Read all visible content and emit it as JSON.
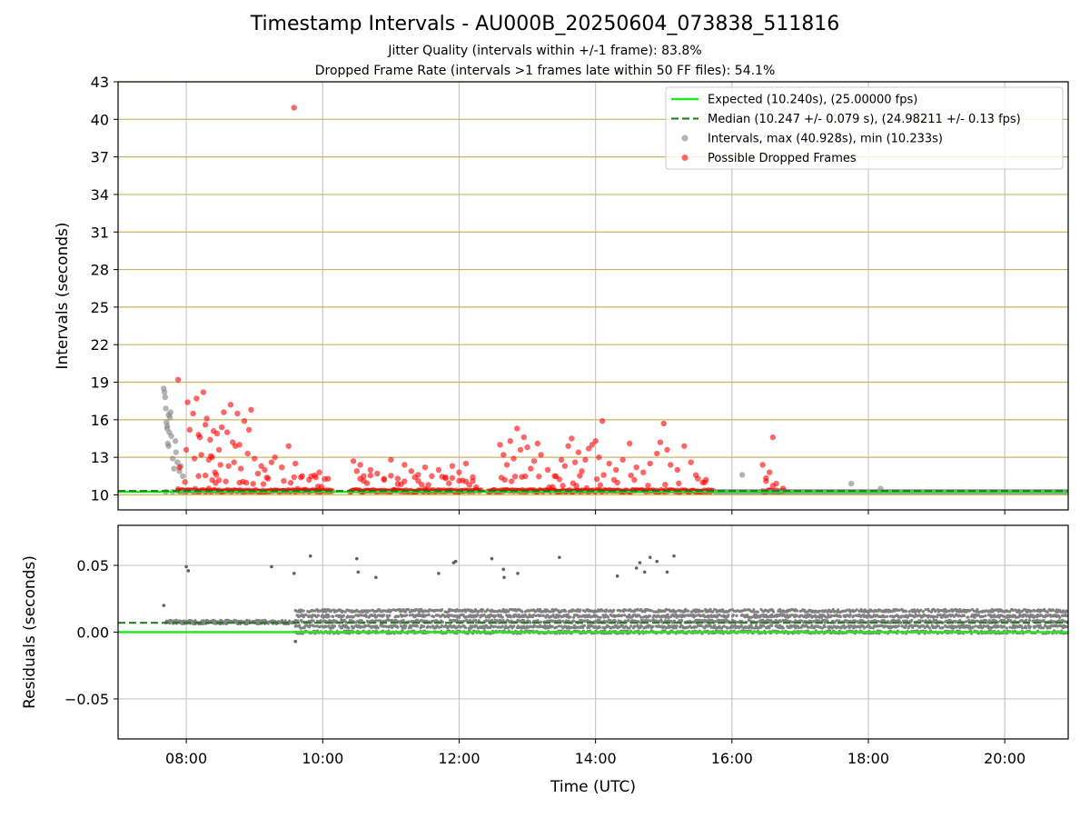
{
  "titles": {
    "main": "Timestamp Intervals - AU000B_20250604_073838_511816",
    "sub1": "Jitter Quality (intervals within +/-1 frame): 83.8%",
    "sub2": "Dropped Frame Rate (intervals >1 frames late within 50 FF files): 54.1%"
  },
  "colors": {
    "expected": "#22e822",
    "median": "#1a7a1a",
    "intervals": "#808080",
    "dropped": "#ff0000",
    "hgrid_top": "#c8b460",
    "vgrid": "#c8c8c8"
  },
  "chart_data": [
    {
      "type": "scatter",
      "ylabel": "Intervals (seconds)",
      "xlabel": "",
      "xlim_hours": [
        7.0,
        20.93
      ],
      "ylim": [
        8.8,
        43
      ],
      "yticks": [
        10,
        13,
        16,
        19,
        22,
        25,
        28,
        31,
        34,
        37,
        40,
        43
      ],
      "ytick_labels": [
        "10",
        "13",
        "16",
        "19",
        "22",
        "25",
        "28",
        "31",
        "34",
        "37",
        "40",
        "43"
      ],
      "grid": "on",
      "legend_position": "top-right",
      "legend": [
        {
          "key": "expected",
          "label": "Expected (10.240s), (25.00000 fps)"
        },
        {
          "key": "median",
          "label": "Median (10.247 +/- 0.079 s), (24.98211 +/- 0.13 fps)"
        },
        {
          "key": "intervals",
          "label": "Intervals, max (40.928s), min (10.233s)"
        },
        {
          "key": "dropped",
          "label": "Possible Dropped Frames"
        }
      ],
      "expected_value": 10.24,
      "median_value": 10.247,
      "series": [
        {
          "name": "Intervals, max (40.928s), min (10.233s)",
          "x": [
            7.67,
            7.68,
            7.69,
            7.7,
            7.71,
            7.72,
            7.73,
            7.74,
            7.75,
            7.76,
            7.77,
            7.78,
            7.8,
            7.82,
            7.84,
            7.85,
            7.87,
            7.9,
            7.92,
            7.95,
            7.72,
            7.74,
            16.15,
            17.75,
            18.18,
            7.7,
            7.8,
            7.95,
            8.1
          ],
          "y": [
            18.5,
            18.2,
            17.8,
            16.9,
            15.8,
            15.3,
            14.1,
            13.9,
            15.0,
            16.2,
            16.6,
            14.7,
            12.9,
            12.1,
            14.3,
            13.4,
            12.6,
            11.9,
            12.3,
            11.5,
            15.5,
            16.4,
            11.6,
            10.9,
            10.5,
            10.24,
            10.25,
            10.24,
            10.26
          ]
        },
        {
          "name": "Possible Dropped Frames",
          "x": [
            9.58,
            7.88,
            8.02,
            8.05,
            8.1,
            8.15,
            8.18,
            8.22,
            8.25,
            8.28,
            8.3,
            8.33,
            8.35,
            8.38,
            8.4,
            8.42,
            8.45,
            8.48,
            8.5,
            8.55,
            8.6,
            8.65,
            8.68,
            8.7,
            8.72,
            8.75,
            8.8,
            8.85,
            8.9,
            8.95,
            9.0,
            9.05,
            9.1,
            9.15,
            9.2,
            9.25,
            9.3,
            9.4,
            9.5,
            9.6,
            9.7,
            9.8,
            9.9,
            9.95,
            7.9,
            8.0,
            8.12,
            8.2,
            8.36,
            8.44,
            8.52,
            8.62,
            8.78,
            8.92,
            10.45,
            10.5,
            10.55,
            10.6,
            10.7,
            10.8,
            10.9,
            11.0,
            11.1,
            11.2,
            11.3,
            11.4,
            11.5,
            11.6,
            11.7,
            11.8,
            11.9,
            12.0,
            12.1,
            12.2,
            12.6,
            12.65,
            12.7,
            12.75,
            12.8,
            12.85,
            12.9,
            12.95,
            13.0,
            13.05,
            13.1,
            13.15,
            13.2,
            13.3,
            13.4,
            13.5,
            13.55,
            13.6,
            13.65,
            13.7,
            13.75,
            13.8,
            13.85,
            13.9,
            13.95,
            14.0,
            14.05,
            14.1,
            14.2,
            14.3,
            14.4,
            14.5,
            14.6,
            14.7,
            14.8,
            14.9,
            14.95,
            15.0,
            15.05,
            15.1,
            15.2,
            15.3,
            15.4,
            15.5,
            15.6,
            16.45,
            16.5,
            16.55,
            16.6,
            16.65
          ],
          "y": [
            40.93,
            19.2,
            17.4,
            15.2,
            16.5,
            17.7,
            14.8,
            13.2,
            18.2,
            15.6,
            16.1,
            12.8,
            14.4,
            13.0,
            15.1,
            11.8,
            14.9,
            13.6,
            12.4,
            16.6,
            15.0,
            17.2,
            14.2,
            12.6,
            13.9,
            16.5,
            12.1,
            15.9,
            13.3,
            16.8,
            12.9,
            11.7,
            12.3,
            12.0,
            11.3,
            12.6,
            13.0,
            12.2,
            13.9,
            12.5,
            11.5,
            11.2,
            11.4,
            11.8,
            12.2,
            13.6,
            12.9,
            14.6,
            13.1,
            11.6,
            15.4,
            12.3,
            14.0,
            15.2,
            12.7,
            11.9,
            12.4,
            11.5,
            12.0,
            11.7,
            11.2,
            12.8,
            11.3,
            12.4,
            11.9,
            11.6,
            12.2,
            11.5,
            12.0,
            11.4,
            12.3,
            11.8,
            12.5,
            11.1,
            14.0,
            13.2,
            12.4,
            14.3,
            12.9,
            15.3,
            13.6,
            14.6,
            13.8,
            12.1,
            12.7,
            14.1,
            13.2,
            12.0,
            11.5,
            12.8,
            12.3,
            13.9,
            14.5,
            12.6,
            13.4,
            11.9,
            12.8,
            13.7,
            14.0,
            14.3,
            13.0,
            15.9,
            12.5,
            12.0,
            12.8,
            14.1,
            12.2,
            11.8,
            12.5,
            13.3,
            14.2,
            15.7,
            13.6,
            12.4,
            12.0,
            13.9,
            12.6,
            11.3,
            11.0,
            12.4,
            11.1,
            11.8,
            14.6,
            10.9
          ]
        }
      ],
      "dropped_dense_segments_hours": [
        [
          7.88,
          10.15
        ],
        [
          10.4,
          12.32
        ],
        [
          12.42,
          15.72
        ],
        [
          16.45,
          16.78
        ]
      ]
    },
    {
      "type": "scatter",
      "ylabel": "Residuals (seconds)",
      "xlabel": "Time (UTC)",
      "xlim_hours": [
        7.0,
        20.93
      ],
      "ylim": [
        -0.08,
        0.08
      ],
      "yticks": [
        -0.05,
        0.0,
        0.05
      ],
      "ytick_labels": [
        "−0.05",
        "0.00",
        "0.05"
      ],
      "xticks_hours": [
        8,
        10,
        12,
        14,
        16,
        18,
        20
      ],
      "xtick_labels": [
        "08:00",
        "10:00",
        "12:00",
        "14:00",
        "16:00",
        "18:00",
        "20:00"
      ],
      "grid": "on",
      "expected_value": 0.0,
      "median_value": 0.007,
      "series": [
        {
          "name": "Residuals",
          "x": [
            7.67,
            8.0,
            8.03,
            9.25,
            9.58,
            9.82,
            10.5,
            10.52,
            10.78,
            11.7,
            11.92,
            11.95,
            12.48,
            12.65,
            12.66,
            12.86,
            13.47,
            14.32,
            14.6,
            14.65,
            14.72,
            14.8,
            14.9,
            15.05,
            15.15,
            9.6
          ],
          "y": [
            0.02,
            0.049,
            0.046,
            0.049,
            0.044,
            0.057,
            0.055,
            0.045,
            0.041,
            0.044,
            0.052,
            0.053,
            0.055,
            0.047,
            0.041,
            0.044,
            0.056,
            0.042,
            0.048,
            0.052,
            0.045,
            0.056,
            0.053,
            0.045,
            0.057,
            -0.007
          ]
        }
      ],
      "dense_bands": [
        {
          "from_hour": 7.7,
          "to_hour": 9.6,
          "values": [
            0.007,
            0.008
          ]
        },
        {
          "from_hour": 9.6,
          "to_hour": 20.93,
          "values": [
            0.0,
            0.004,
            0.008,
            0.012,
            0.016
          ]
        }
      ]
    }
  ]
}
